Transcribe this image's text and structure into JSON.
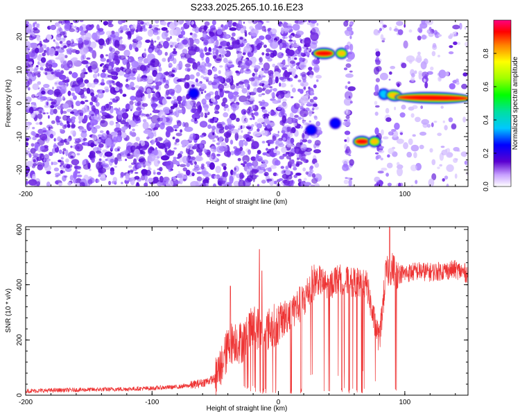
{
  "title": "S233.2025.265.10.16.E23",
  "chart_data": [
    {
      "type": "heatmap",
      "xlabel": "Height of straight line (km)",
      "ylabel": "Frequency (Hz)",
      "xlim": [
        -200,
        150
      ],
      "ylim": [
        -25,
        25
      ],
      "xticks": [
        -200,
        -100,
        0,
        100
      ],
      "yticks": [
        -20,
        -10,
        0,
        10,
        20
      ],
      "colorbar": {
        "label": "Normalized spectral amplitude",
        "range": [
          0,
          1
        ],
        "ticks": [
          "0.0",
          "0.2",
          "0.4",
          "0.6",
          "0.8"
        ],
        "colormap": "rainbow"
      },
      "features": [
        {
          "x": [
            -68,
            -66
          ],
          "y": [
            3,
            3
          ],
          "amplitude": 0.3
        },
        {
          "x": [
            25,
            27
          ],
          "y": [
            -8,
            -8
          ],
          "amplitude": 0.3
        },
        {
          "x": [
            30,
            42
          ],
          "y": [
            15,
            15
          ],
          "amplitude": 0.95
        },
        {
          "x": [
            48,
            52
          ],
          "y": [
            15,
            15
          ],
          "amplitude": 0.85
        },
        {
          "x": [
            44,
            46
          ],
          "y": [
            -6,
            -6
          ],
          "amplitude": 0.3
        },
        {
          "x": [
            62,
            70
          ],
          "y": [
            -11.5,
            -11.5
          ],
          "amplitude": 0.95
        },
        {
          "x": [
            74,
            78
          ],
          "y": [
            -11.5,
            -11.5
          ],
          "amplitude": 0.85
        },
        {
          "x": [
            82,
            85
          ],
          "y": [
            3,
            2.5
          ],
          "amplitude": 0.4
        },
        {
          "x": [
            88,
            95
          ],
          "y": [
            2.5,
            2.2
          ],
          "amplitude": 0.9
        },
        {
          "x": [
            95,
            150
          ],
          "y": [
            1.8,
            1.5
          ],
          "amplitude": 0.95
        }
      ]
    },
    {
      "type": "line",
      "xlabel": "Height of straight line (km)",
      "ylabel": "SNR (10 * v/v)",
      "xlim": [
        -200,
        150
      ],
      "ylim": [
        0,
        610
      ],
      "xticks": [
        -200,
        -100,
        0,
        100
      ],
      "yticks": [
        0,
        200,
        400,
        600
      ],
      "series": [
        {
          "color": "#ee3333",
          "x": [
            -200,
            -175,
            -150,
            -125,
            -100,
            -90,
            -80,
            -70,
            -60,
            -50,
            -45,
            -40,
            -35,
            -30,
            -25,
            -20,
            -15,
            -10,
            -5,
            0,
            5,
            10,
            15,
            20,
            25,
            30,
            35,
            40,
            45,
            50,
            55,
            60,
            65,
            70,
            75,
            80,
            85,
            90,
            95,
            100,
            110,
            120,
            130,
            140,
            150
          ],
          "y": [
            15,
            18,
            20,
            22,
            25,
            28,
            30,
            35,
            45,
            60,
            110,
            170,
            200,
            190,
            210,
            250,
            240,
            230,
            250,
            260,
            280,
            310,
            320,
            340,
            390,
            420,
            410,
            390,
            420,
            420,
            410,
            410,
            400,
            400,
            280,
            200,
            440,
            460,
            440,
            440,
            450,
            445,
            450,
            455,
            440
          ]
        }
      ],
      "spikes_up": [
        {
          "x": -38,
          "y": 395
        },
        {
          "x": -15,
          "y": 528
        },
        {
          "x": -13,
          "y": 450
        },
        {
          "x": 88,
          "y": 610
        }
      ],
      "dropouts": [
        -12,
        -2,
        10,
        18,
        36,
        40,
        50,
        56,
        62,
        66,
        68,
        93
      ]
    }
  ]
}
